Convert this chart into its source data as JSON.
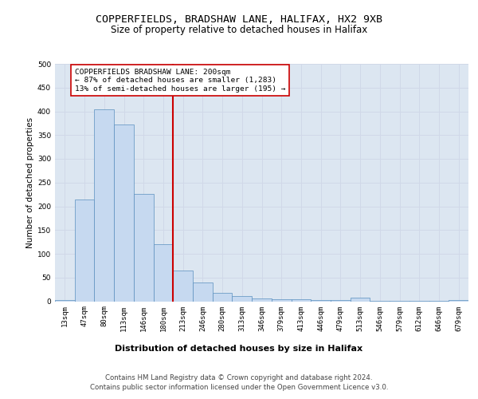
{
  "title1": "COPPERFIELDS, BRADSHAW LANE, HALIFAX, HX2 9XB",
  "title2": "Size of property relative to detached houses in Halifax",
  "xlabel": "Distribution of detached houses by size in Halifax",
  "ylabel": "Number of detached properties",
  "bar_labels": [
    "13sqm",
    "47sqm",
    "80sqm",
    "113sqm",
    "146sqm",
    "180sqm",
    "213sqm",
    "246sqm",
    "280sqm",
    "313sqm",
    "346sqm",
    "379sqm",
    "413sqm",
    "446sqm",
    "479sqm",
    "513sqm",
    "546sqm",
    "579sqm",
    "612sqm",
    "646sqm",
    "679sqm"
  ],
  "bar_values": [
    2,
    215,
    404,
    373,
    226,
    120,
    65,
    40,
    17,
    11,
    6,
    4,
    4,
    2,
    2,
    7,
    1,
    1,
    1,
    1,
    2
  ],
  "bar_color": "#c6d9f0",
  "bar_edge_color": "#5a8fbe",
  "vline_x_index": 6,
  "vline_color": "#cc0000",
  "annotation_text": "COPPERFIELDS BRADSHAW LANE: 200sqm\n← 87% of detached houses are smaller (1,283)\n13% of semi-detached houses are larger (195) →",
  "annotation_box_color": "#ffffff",
  "annotation_box_edge_color": "#cc0000",
  "ylim": [
    0,
    500
  ],
  "yticks": [
    0,
    50,
    100,
    150,
    200,
    250,
    300,
    350,
    400,
    450,
    500
  ],
  "grid_color": "#d0d8e8",
  "background_color": "#dce6f1",
  "footer1": "Contains HM Land Registry data © Crown copyright and database right 2024.",
  "footer2": "Contains public sector information licensed under the Open Government Licence v3.0.",
  "title1_fontsize": 9.5,
  "title2_fontsize": 8.5,
  "ylabel_fontsize": 7.5,
  "xlabel_fontsize": 8,
  "tick_fontsize": 6.5,
  "annotation_fontsize": 6.8,
  "footer_fontsize": 6.2
}
